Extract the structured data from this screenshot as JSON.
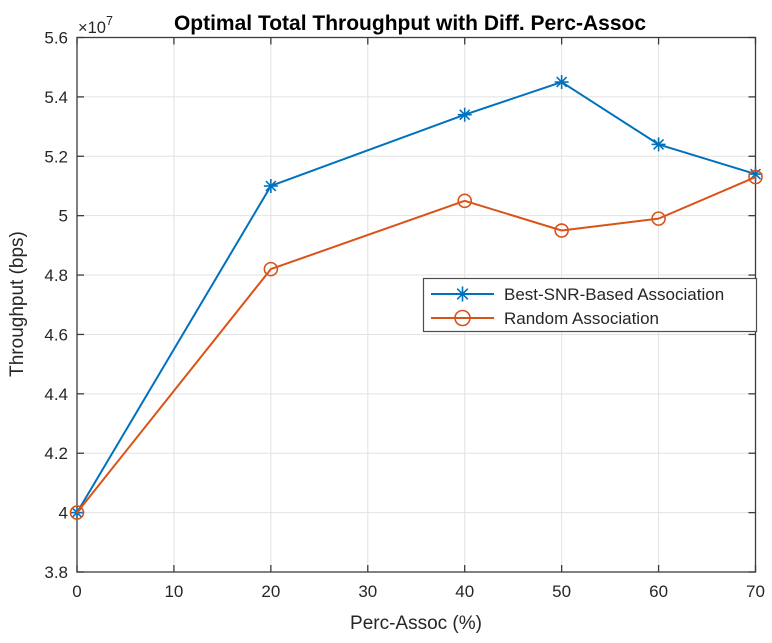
{
  "figure": {
    "background": "#ffffff",
    "text_color": "#262626",
    "title_color": "#000000",
    "grid_color": "#e2e2e2",
    "axis_color": "#3b3b3b"
  },
  "chart_data": {
    "type": "line",
    "title": "Optimal Total Throughput with Diff. Perc-Assoc",
    "xlabel": "Perc-Assoc (%)",
    "ylabel": "Throughput (bps)",
    "y_axis_multiplier": {
      "base": "×10",
      "exponent": "7"
    },
    "x": [
      0,
      20,
      40,
      50,
      60,
      70
    ],
    "series": [
      {
        "name": "Best-SNR-Based Association",
        "color": "#0072BD",
        "marker": "asterisk",
        "values_e7": [
          4.0,
          5.1,
          5.34,
          5.45,
          5.24,
          5.14
        ]
      },
      {
        "name": "Random Association",
        "color": "#D95319",
        "marker": "circle",
        "values_e7": [
          4.0,
          4.82,
          5.05,
          4.95,
          4.99,
          5.13
        ]
      }
    ],
    "xlim": [
      0,
      70
    ],
    "ylim_e7": [
      3.8,
      5.6
    ],
    "xticks": [
      0,
      10,
      20,
      30,
      40,
      50,
      60,
      70
    ],
    "xtick_labels": [
      "0",
      "10",
      "20",
      "30",
      "40",
      "50",
      "60",
      "70"
    ],
    "yticks_e7": [
      3.8,
      4.0,
      4.2,
      4.4,
      4.6,
      4.8,
      5.0,
      5.2,
      5.4,
      5.6
    ],
    "ytick_labels": [
      "3.8",
      "4",
      "4.2",
      "4.4",
      "4.6",
      "4.8",
      "5",
      "5.2",
      "5.4",
      "5.6"
    ],
    "grid": true,
    "legend": {
      "position": "right-middle",
      "border": true
    }
  }
}
